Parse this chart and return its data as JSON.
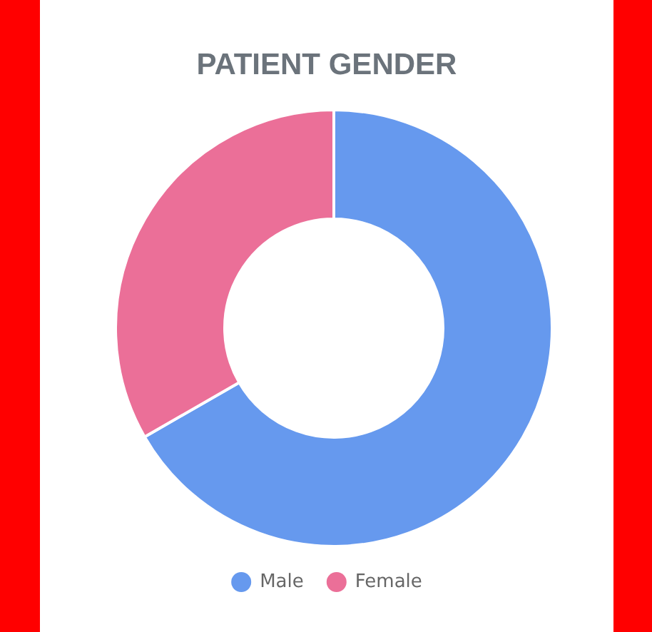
{
  "chart_data": {
    "type": "donut",
    "title": "PATIENT GENDER",
    "categories": [
      "Male",
      "Female"
    ],
    "values": [
      66.7,
      33.3
    ],
    "colors": [
      "#6699ee",
      "#eb6f98"
    ],
    "legend": "bottom"
  }
}
